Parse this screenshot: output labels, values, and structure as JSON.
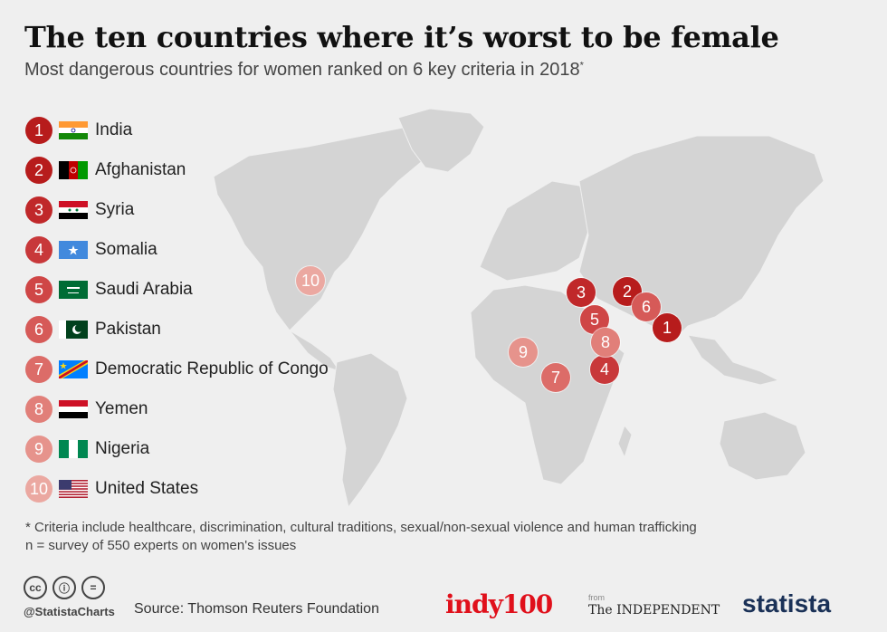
{
  "header": {
    "title": "The ten countries where it’s worst to be female",
    "subtitle": "Most dangerous countries for women ranked on 6 key criteria in 2018",
    "subtitle_mark": "*"
  },
  "ranking": [
    {
      "rank": "1",
      "country": "India",
      "flag": "india-flag",
      "color": "#b71c1c"
    },
    {
      "rank": "2",
      "country": "Afghanistan",
      "flag": "afghanistan-flag",
      "color": "#b71c1c"
    },
    {
      "rank": "3",
      "country": "Syria",
      "flag": "syria-flag",
      "color": "#c0282a"
    },
    {
      "rank": "4",
      "country": "Somalia",
      "flag": "somalia-flag",
      "color": "#c8383a"
    },
    {
      "rank": "5",
      "country": "Saudi Arabia",
      "flag": "saudi-arabia-flag",
      "color": "#cf4646"
    },
    {
      "rank": "6",
      "country": "Pakistan",
      "flag": "pakistan-flag",
      "color": "#d65a58"
    },
    {
      "rank": "7",
      "country": "Democratic Republic of Congo",
      "flag": "drc-flag",
      "color": "#dc6c68"
    },
    {
      "rank": "8",
      "country": "Yemen",
      "flag": "yemen-flag",
      "color": "#e17f79"
    },
    {
      "rank": "9",
      "country": "Nigeria",
      "flag": "nigeria-flag",
      "color": "#e6938c"
    },
    {
      "rank": "10",
      "country": "United States",
      "flag": "usa-flag",
      "color": "#eba8a1"
    }
  ],
  "map_markers": [
    {
      "rank": "1"
    },
    {
      "rank": "2"
    },
    {
      "rank": "3"
    },
    {
      "rank": "4"
    },
    {
      "rank": "5"
    },
    {
      "rank": "6"
    },
    {
      "rank": "7"
    },
    {
      "rank": "8"
    },
    {
      "rank": "9"
    },
    {
      "rank": "10"
    }
  ],
  "footnote": {
    "line1": "* Criteria include healthcare, discrimination, cultural traditions, sexual/non-sexual violence and human trafficking",
    "line2": "n = survey of 550 experts on women's issues"
  },
  "footer": {
    "cc_icons": [
      "cc",
      "ⓘ",
      "="
    ],
    "handle": "@StatistaCharts",
    "source": "Source: Thomson Reuters Foundation",
    "indy_logo": "indy100",
    "from_label": "from",
    "independent_logo": "The INDEPENDENT",
    "statista_logo": "statista"
  }
}
